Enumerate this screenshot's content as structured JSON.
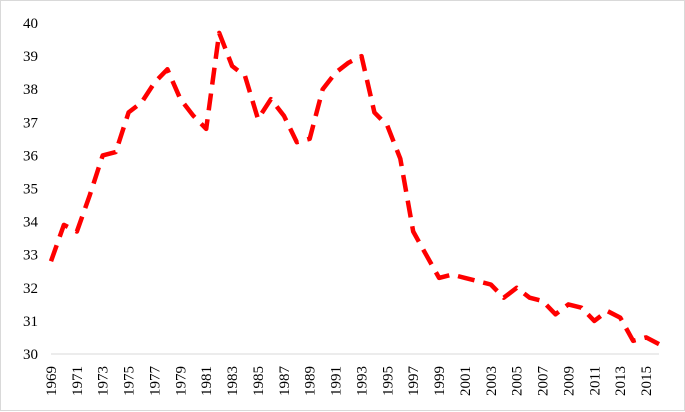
{
  "chart_data": {
    "type": "line",
    "title": "",
    "xlabel": "",
    "ylabel": "",
    "ylim": [
      30,
      40
    ],
    "y_ticks": [
      "30",
      "31",
      "32",
      "33",
      "34",
      "35",
      "36",
      "37",
      "38",
      "39",
      "40"
    ],
    "x_ticks": [
      "1969",
      "1971",
      "1973",
      "1975",
      "1977",
      "1979",
      "1981",
      "1983",
      "1985",
      "1987",
      "1989",
      "1991",
      "1993",
      "1995",
      "1997",
      "1999",
      "2001",
      "2003",
      "2005",
      "2007",
      "2009",
      "2011",
      "2013",
      "2015"
    ],
    "grid": false,
    "legend": "none",
    "series": [
      {
        "line_style": "dashed",
        "color": "#ff0000",
        "x": [
          1969,
          1970,
          1971,
          1972,
          1973,
          1974,
          1975,
          1976,
          1977,
          1978,
          1979,
          1980,
          1981,
          1982,
          1983,
          1984,
          1985,
          1986,
          1987,
          1988,
          1989,
          1990,
          1991,
          1992,
          1993,
          1994,
          1995,
          1996,
          1997,
          1998,
          1999,
          2000,
          2001,
          2002,
          2003,
          2004,
          2005,
          2006,
          2007,
          2008,
          2009,
          2010,
          2011,
          2012,
          2013,
          2014,
          2015,
          2016
        ],
        "values": [
          32.8,
          33.9,
          33.7,
          34.8,
          36.0,
          36.1,
          37.3,
          37.6,
          38.2,
          38.6,
          37.7,
          37.2,
          36.8,
          39.7,
          38.7,
          38.4,
          37.1,
          37.7,
          37.2,
          36.4,
          36.5,
          38.0,
          38.5,
          38.8,
          39.0,
          37.3,
          36.9,
          35.9,
          33.7,
          33.0,
          32.3,
          32.4,
          32.3,
          32.2,
          32.1,
          31.7,
          32.0,
          31.7,
          31.6,
          31.2,
          31.5,
          31.4,
          31.0,
          31.3,
          31.1,
          30.4,
          30.5,
          30.3
        ]
      }
    ]
  }
}
